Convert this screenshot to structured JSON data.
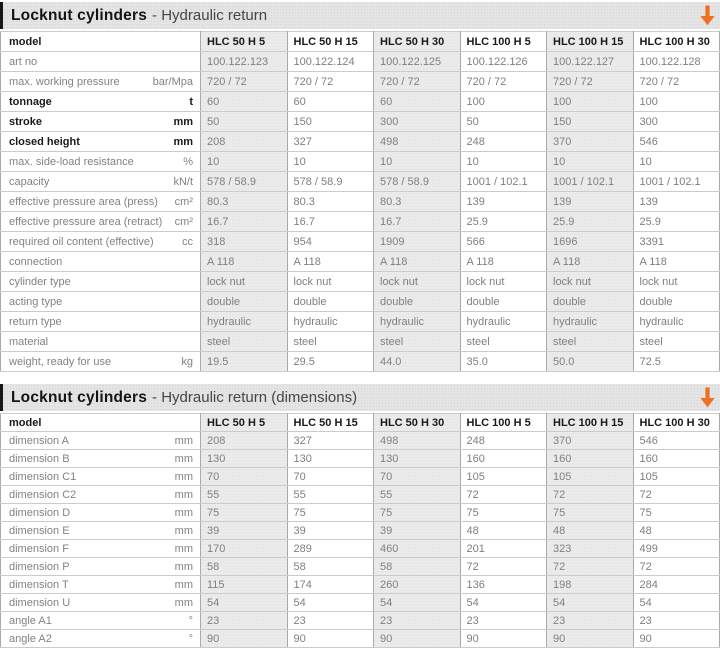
{
  "accent_color": "#ee7123",
  "tables": [
    {
      "title_bold": "Locknut cylinders",
      "title_rest": "- Hydraulic return",
      "header_label": "model",
      "columns": [
        "HLC 50 H 5",
        "HLC 50 H 15",
        "HLC 50 H 30",
        "HLC 100 H 5",
        "HLC 100 H 15",
        "HLC 100 H 30"
      ],
      "rows": [
        {
          "label": "art no",
          "unit": "",
          "bold": false,
          "values": [
            "100.122.123",
            "100.122.124",
            "100.122.125",
            "100.122.126",
            "100.122.127",
            "100.122.128"
          ]
        },
        {
          "label": "max. working pressure",
          "unit": "bar/Mpa",
          "bold": false,
          "values": [
            "720 / 72",
            "720 / 72",
            "720 / 72",
            "720 / 72",
            "720 / 72",
            "720 / 72"
          ]
        },
        {
          "label": "tonnage",
          "unit": "t",
          "bold": true,
          "values": [
            "60",
            "60",
            "60",
            "100",
            "100",
            "100"
          ]
        },
        {
          "label": "stroke",
          "unit": "mm",
          "bold": true,
          "values": [
            "50",
            "150",
            "300",
            "50",
            "150",
            "300"
          ]
        },
        {
          "label": "closed height",
          "unit": "mm",
          "bold": true,
          "values": [
            "208",
            "327",
            "498",
            "248",
            "370",
            "546"
          ]
        },
        {
          "label": "max. side-load resistance",
          "unit": "%",
          "bold": false,
          "values": [
            "10",
            "10",
            "10",
            "10",
            "10",
            "10"
          ]
        },
        {
          "label": "capacity",
          "unit": "kN/t",
          "bold": false,
          "values": [
            "578 / 58.9",
            "578 / 58.9",
            "578 / 58.9",
            "1001 / 102.1",
            "1001 / 102.1",
            "1001 / 102.1"
          ]
        },
        {
          "label": "effective pressure area (press)",
          "unit": "cm²",
          "bold": false,
          "values": [
            "80.3",
            "80.3",
            "80.3",
            "139",
            "139",
            "139"
          ]
        },
        {
          "label": "effective pressure area (retract)",
          "unit": "cm²",
          "bold": false,
          "values": [
            "16.7",
            "16.7",
            "16.7",
            "25.9",
            "25.9",
            "25.9"
          ]
        },
        {
          "label": "required oil content (effective)",
          "unit": "cc",
          "bold": false,
          "values": [
            "318",
            "954",
            "1909",
            "566",
            "1696",
            "3391"
          ]
        },
        {
          "label": "connection",
          "unit": "",
          "bold": false,
          "values": [
            "A 118",
            "A 118",
            "A 118",
            "A 118",
            "A 118",
            "A 118"
          ]
        },
        {
          "label": "cylinder type",
          "unit": "",
          "bold": false,
          "values": [
            "lock nut",
            "lock nut",
            "lock nut",
            "lock nut",
            "lock nut",
            "lock nut"
          ]
        },
        {
          "label": "acting type",
          "unit": "",
          "bold": false,
          "values": [
            "double",
            "double",
            "double",
            "double",
            "double",
            "double"
          ]
        },
        {
          "label": "return type",
          "unit": "",
          "bold": false,
          "values": [
            "hydraulic",
            "hydraulic",
            "hydraulic",
            "hydraulic",
            "hydraulic",
            "hydraulic"
          ]
        },
        {
          "label": "material",
          "unit": "",
          "bold": false,
          "values": [
            "steel",
            "steel",
            "steel",
            "steel",
            "steel",
            "steel"
          ]
        },
        {
          "label": "weight, ready for use",
          "unit": "kg",
          "bold": false,
          "values": [
            "19.5",
            "29.5",
            "44.0",
            "35.0",
            "50.0",
            "72.5"
          ]
        }
      ]
    },
    {
      "title_bold": "Locknut cylinders",
      "title_rest": "- Hydraulic return (dimensions)",
      "header_label": "model",
      "columns": [
        "HLC 50 H 5",
        "HLC 50 H 15",
        "HLC 50 H 30",
        "HLC 100 H 5",
        "HLC 100 H 15",
        "HLC 100 H 30"
      ],
      "rows": [
        {
          "label": "dimension A",
          "unit": "mm",
          "bold": false,
          "values": [
            "208",
            "327",
            "498",
            "248",
            "370",
            "546"
          ]
        },
        {
          "label": "dimension B",
          "unit": "mm",
          "bold": false,
          "values": [
            "130",
            "130",
            "130",
            "160",
            "160",
            "160"
          ]
        },
        {
          "label": "dimension C1",
          "unit": "mm",
          "bold": false,
          "values": [
            "70",
            "70",
            "70",
            "105",
            "105",
            "105"
          ]
        },
        {
          "label": "dimension C2",
          "unit": "mm",
          "bold": false,
          "values": [
            "55",
            "55",
            "55",
            "72",
            "72",
            "72"
          ]
        },
        {
          "label": "dimension D",
          "unit": "mm",
          "bold": false,
          "values": [
            "75",
            "75",
            "75",
            "75",
            "75",
            "75"
          ]
        },
        {
          "label": "dimension E",
          "unit": "mm",
          "bold": false,
          "values": [
            "39",
            "39",
            "39",
            "48",
            "48",
            "48"
          ]
        },
        {
          "label": "dimension F",
          "unit": "mm",
          "bold": false,
          "values": [
            "170",
            "289",
            "460",
            "201",
            "323",
            "499"
          ]
        },
        {
          "label": "dimension P",
          "unit": "mm",
          "bold": false,
          "values": [
            "58",
            "58",
            "58",
            "72",
            "72",
            "72"
          ]
        },
        {
          "label": "dimension T",
          "unit": "mm",
          "bold": false,
          "values": [
            "115",
            "174",
            "260",
            "136",
            "198",
            "284"
          ]
        },
        {
          "label": "dimension U",
          "unit": "mm",
          "bold": false,
          "values": [
            "54",
            "54",
            "54",
            "54",
            "54",
            "54"
          ]
        },
        {
          "label": "angle A1",
          "unit": "°",
          "bold": false,
          "values": [
            "23",
            "23",
            "23",
            "23",
            "23",
            "23"
          ]
        },
        {
          "label": "angle A2",
          "unit": "°",
          "bold": false,
          "values": [
            "90",
            "90",
            "90",
            "90",
            "90",
            "90"
          ]
        }
      ]
    }
  ]
}
